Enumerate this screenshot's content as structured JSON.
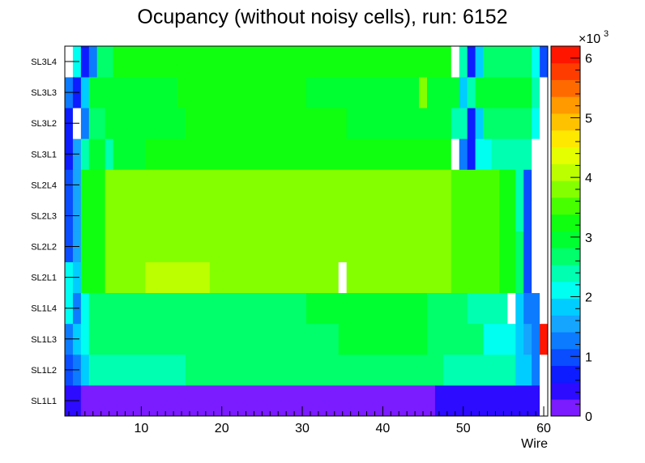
{
  "chart_data": {
    "type": "heatmap",
    "title": "Ocupancy (without noisy cells), run: 6152",
    "xlabel": "Wire",
    "ylabel": "",
    "xlim": [
      0.5,
      60.5
    ],
    "x_ticks": [
      10,
      20,
      30,
      40,
      50,
      60
    ],
    "y_categories": [
      "SL1L1",
      "SL1L2",
      "SL1L3",
      "SL1L4",
      "SL2L1",
      "SL2L2",
      "SL2L3",
      "SL2L4",
      "SL3L1",
      "SL3L2",
      "SL3L3",
      "SL3L4"
    ],
    "z_range": [
      0,
      6200
    ],
    "colorbar_ticks": [
      0,
      1,
      2,
      3,
      4,
      5,
      6
    ],
    "colorbar_exponent_base": "×10",
    "colorbar_exponent": "3",
    "cell_units": "counts (×10^3)",
    "layers": {
      "SL1L1": {
        "segments": [
          [
            1,
            2,
            0.5
          ],
          [
            3,
            46,
            0.28
          ],
          [
            47,
            59,
            0.52
          ],
          [
            60,
            60,
            null
          ]
        ]
      },
      "SL1L2": {
        "segments": [
          [
            1,
            1,
            1.1
          ],
          [
            2,
            2,
            1.3
          ],
          [
            3,
            3,
            1.9
          ],
          [
            4,
            5,
            2.3
          ],
          [
            6,
            15,
            2.5
          ],
          [
            16,
            33,
            2.7
          ],
          [
            34,
            47,
            2.8
          ],
          [
            48,
            56,
            2.3
          ],
          [
            57,
            58,
            1.8
          ],
          [
            59,
            59,
            1.4
          ],
          [
            60,
            60,
            null
          ]
        ]
      },
      "SL1L3": {
        "segments": [
          [
            1,
            1,
            1.3
          ],
          [
            2,
            2,
            1.7
          ],
          [
            3,
            3,
            2.1
          ],
          [
            4,
            12,
            2.6
          ],
          [
            13,
            34,
            2.8
          ],
          [
            35,
            45,
            2.9
          ],
          [
            46,
            52,
            2.8
          ],
          [
            53,
            56,
            2.1
          ],
          [
            57,
            57,
            1.9
          ],
          [
            58,
            58,
            1.5
          ],
          [
            59,
            59,
            1.2
          ],
          [
            60,
            60,
            6.1
          ]
        ]
      },
      "SL1L4": {
        "segments": [
          [
            1,
            1,
            2.0
          ],
          [
            2,
            2,
            1.4
          ],
          [
            3,
            3,
            2.1
          ],
          [
            4,
            10,
            2.6
          ],
          [
            11,
            18,
            2.7
          ],
          [
            19,
            30,
            2.8
          ],
          [
            31,
            45,
            2.9
          ],
          [
            46,
            50,
            2.6
          ],
          [
            51,
            55,
            2.3
          ],
          [
            56,
            56,
            null
          ],
          [
            57,
            57,
            1.8
          ],
          [
            58,
            59,
            1.4
          ],
          [
            60,
            60,
            null
          ]
        ]
      },
      "SL2L1": {
        "segments": [
          [
            1,
            1,
            2.2
          ],
          [
            2,
            2,
            1.9
          ],
          [
            3,
            5,
            3.1
          ],
          [
            6,
            10,
            3.7
          ],
          [
            11,
            18,
            4.0
          ],
          [
            19,
            34,
            3.9
          ],
          [
            35,
            35,
            null
          ],
          [
            36,
            48,
            3.8
          ],
          [
            49,
            54,
            3.5
          ],
          [
            55,
            56,
            3.3
          ],
          [
            57,
            57,
            2.7
          ],
          [
            58,
            58,
            0.9
          ],
          [
            59,
            60,
            null
          ]
        ]
      },
      "SL2L2": {
        "segments": [
          [
            1,
            1,
            0.9
          ],
          [
            2,
            2,
            1.5
          ],
          [
            3,
            5,
            3.2
          ],
          [
            6,
            15,
            3.7
          ],
          [
            16,
            34,
            3.9
          ],
          [
            35,
            48,
            3.8
          ],
          [
            49,
            54,
            3.6
          ],
          [
            55,
            56,
            3.2
          ],
          [
            57,
            57,
            2.8
          ],
          [
            58,
            58,
            0.9
          ],
          [
            59,
            60,
            null
          ]
        ]
      },
      "SL2L3": {
        "segments": [
          [
            1,
            1,
            1.0
          ],
          [
            2,
            2,
            1.6
          ],
          [
            3,
            5,
            3.3
          ],
          [
            6,
            16,
            3.8
          ],
          [
            17,
            33,
            3.9
          ],
          [
            34,
            48,
            3.7
          ],
          [
            49,
            54,
            3.5
          ],
          [
            55,
            56,
            3.1
          ],
          [
            57,
            57,
            2.3
          ],
          [
            58,
            58,
            0.9
          ],
          [
            59,
            60,
            null
          ]
        ]
      },
      "SL2L4": {
        "segments": [
          [
            1,
            1,
            0.9
          ],
          [
            2,
            2,
            1.5
          ],
          [
            3,
            5,
            3.2
          ],
          [
            6,
            16,
            3.8
          ],
          [
            17,
            34,
            3.9
          ],
          [
            35,
            48,
            3.7
          ],
          [
            49,
            54,
            3.5
          ],
          [
            55,
            56,
            3.2
          ],
          [
            57,
            57,
            2.5
          ],
          [
            58,
            58,
            0.9
          ],
          [
            59,
            60,
            null
          ]
        ]
      },
      "SL3L1": {
        "segments": [
          [
            1,
            1,
            0.6
          ],
          [
            2,
            2,
            1.5
          ],
          [
            3,
            3,
            2.4
          ],
          [
            4,
            5,
            2.9
          ],
          [
            6,
            6,
            2.4
          ],
          [
            7,
            10,
            3.0
          ],
          [
            11,
            15,
            3.1
          ],
          [
            16,
            35,
            3.2
          ],
          [
            36,
            48,
            3.1
          ],
          [
            49,
            49,
            null
          ],
          [
            50,
            50,
            1.4
          ],
          [
            51,
            51,
            0.7
          ],
          [
            52,
            53,
            2.2
          ],
          [
            54,
            58,
            2.5
          ],
          [
            59,
            60,
            null
          ]
        ]
      },
      "SL3L2": {
        "segments": [
          [
            1,
            1,
            0.6
          ],
          [
            2,
            2,
            null
          ],
          [
            3,
            3,
            1.3
          ],
          [
            4,
            5,
            2.8
          ],
          [
            6,
            15,
            3.0
          ],
          [
            16,
            35,
            3.1
          ],
          [
            36,
            48,
            3.0
          ],
          [
            49,
            49,
            2.5
          ],
          [
            50,
            50,
            2.4
          ],
          [
            51,
            51,
            0.7
          ],
          [
            52,
            52,
            1.8
          ],
          [
            53,
            58,
            2.6
          ],
          [
            59,
            59,
            2.2
          ],
          [
            60,
            60,
            null
          ]
        ]
      },
      "SL3L3": {
        "segments": [
          [
            1,
            1,
            1.2
          ],
          [
            2,
            2,
            0.6
          ],
          [
            3,
            3,
            1.9
          ],
          [
            4,
            14,
            3.0
          ],
          [
            15,
            30,
            3.1
          ],
          [
            31,
            44,
            3.0
          ],
          [
            45,
            45,
            3.9
          ],
          [
            46,
            48,
            3.0
          ],
          [
            49,
            49,
            2.9
          ],
          [
            50,
            50,
            1.9
          ],
          [
            51,
            51,
            2.4
          ],
          [
            52,
            58,
            3.0
          ],
          [
            59,
            59,
            2.3
          ],
          [
            60,
            60,
            null
          ]
        ]
      },
      "SL3L4": {
        "segments": [
          [
            1,
            1,
            null
          ],
          [
            2,
            2,
            2.0
          ],
          [
            3,
            3,
            0.6
          ],
          [
            4,
            4,
            1.3
          ],
          [
            5,
            6,
            2.8
          ],
          [
            7,
            30,
            3.2
          ],
          [
            31,
            48,
            3.1
          ],
          [
            49,
            49,
            null
          ],
          [
            50,
            50,
            2.5
          ],
          [
            51,
            51,
            0.6
          ],
          [
            52,
            52,
            1.9
          ],
          [
            53,
            58,
            2.6
          ],
          [
            59,
            59,
            2.2
          ],
          [
            60,
            60,
            1.1
          ]
        ]
      }
    }
  }
}
